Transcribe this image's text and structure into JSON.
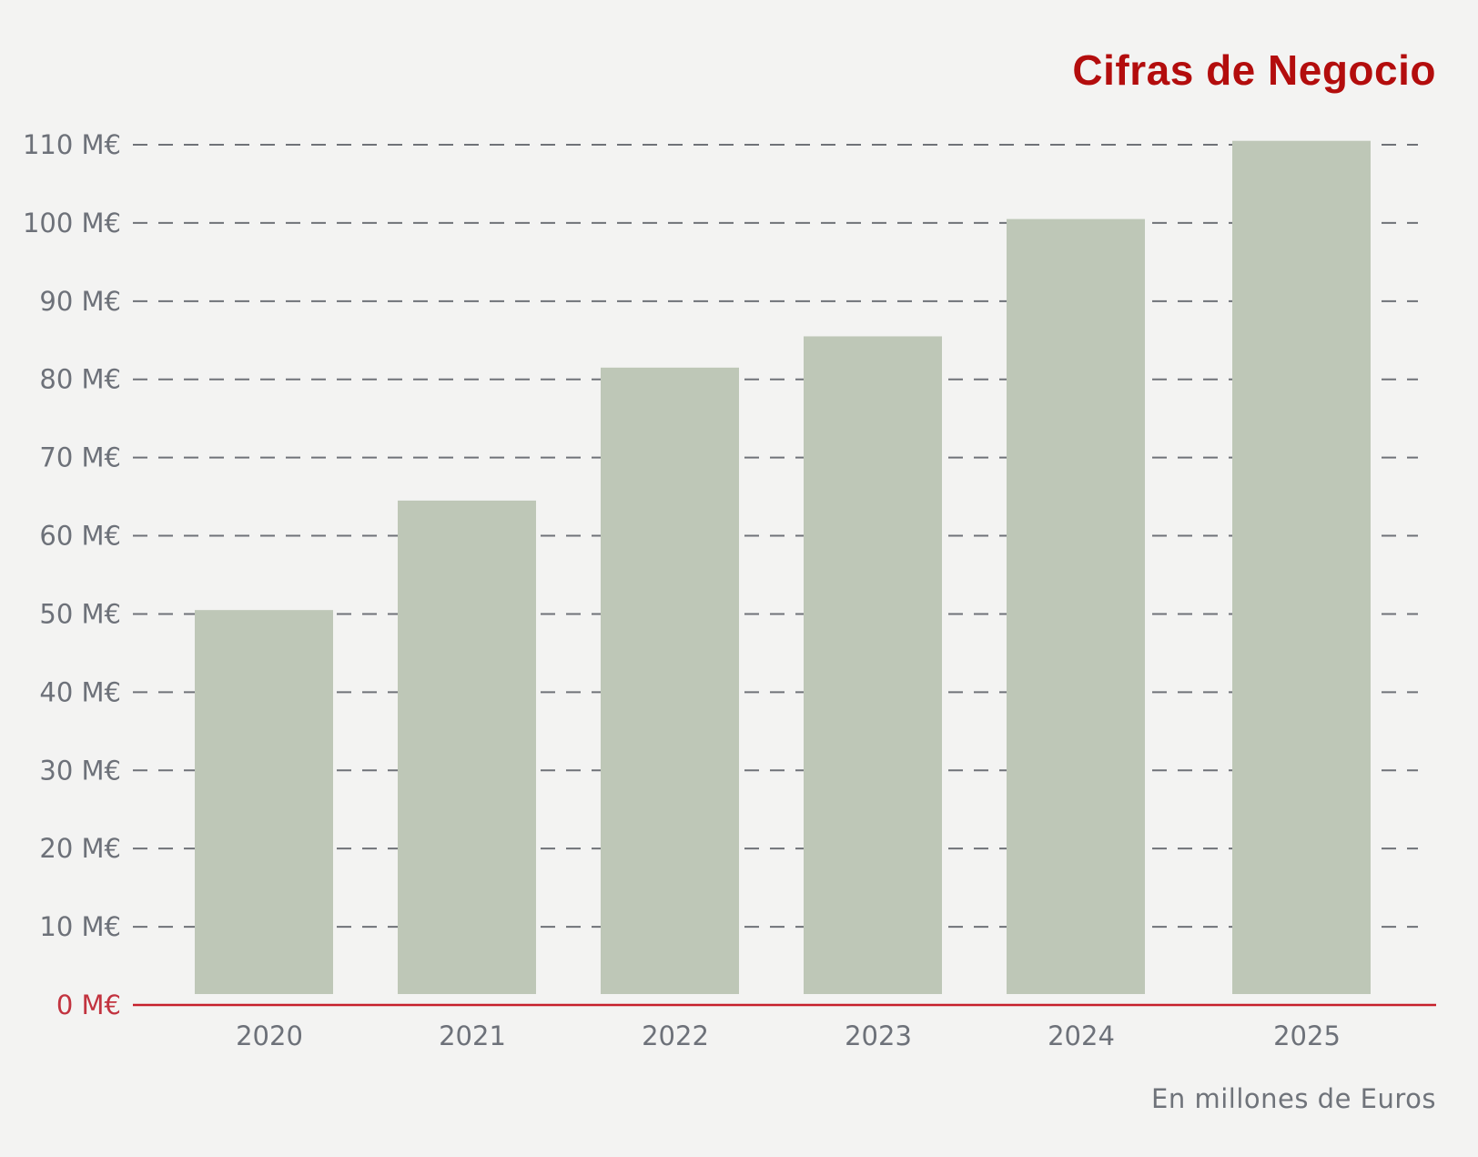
{
  "chart_data": {
    "type": "bar",
    "title": "Cifras de Negocio",
    "note": "En millones de Euros",
    "categories": [
      "2020",
      "2021",
      "2022",
      "2023",
      "2024",
      "2025"
    ],
    "values": [
      50.5,
      64.5,
      81.5,
      85.5,
      100.5,
      110.5
    ],
    "ylim": [
      0,
      110
    ],
    "yticks": [
      0,
      10,
      20,
      30,
      40,
      50,
      60,
      70,
      80,
      90,
      100,
      110
    ],
    "ytick_labels": [
      "0 M€",
      "10 M€",
      "20 M€",
      "30 M€",
      "40 M€",
      "50 M€",
      "60 M€",
      "70 M€",
      "80 M€",
      "90 M€",
      "100 M€",
      "110 M€"
    ],
    "grid": true,
    "grid_style": "dashed",
    "xlabel": "",
    "ylabel": ""
  },
  "colors": {
    "background": "#f3f3f2",
    "bar": "#bec7b7",
    "title": "#b30d0d",
    "baseline": "#c6202b",
    "zero_label": "#c2333f",
    "tick_label": "#6d7179",
    "grid": "#6f7278"
  }
}
